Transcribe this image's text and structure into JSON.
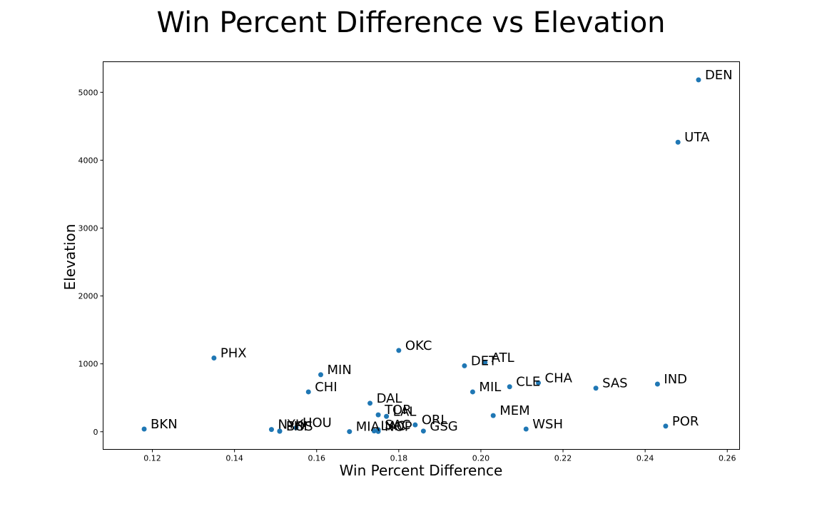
{
  "chart_data": {
    "type": "scatter",
    "title": "Win Percent Difference vs Elevation",
    "xlabel": "Win Percent Difference",
    "ylabel": "Elevation",
    "xlim": [
      0.108,
      0.263
    ],
    "ylim": [
      -260,
      5450
    ],
    "xticks": [
      "0.12",
      "0.14",
      "0.16",
      "0.18",
      "0.20",
      "0.22",
      "0.24",
      "0.26"
    ],
    "yticks": [
      "0",
      "1000",
      "2000",
      "3000",
      "4000",
      "5000"
    ],
    "grid": false,
    "marker_color": "#1f77b4",
    "points": [
      {
        "label": "DEN",
        "x": 0.253,
        "y": 5183
      },
      {
        "label": "UTA",
        "x": 0.248,
        "y": 4265
      },
      {
        "label": "OKC",
        "x": 0.18,
        "y": 1198
      },
      {
        "label": "PHX",
        "x": 0.135,
        "y": 1086
      },
      {
        "label": "ATL",
        "x": 0.201,
        "y": 1020
      },
      {
        "label": "DET",
        "x": 0.196,
        "y": 971
      },
      {
        "label": "MIN",
        "x": 0.161,
        "y": 840
      },
      {
        "label": "CHA",
        "x": 0.214,
        "y": 720
      },
      {
        "label": "IND",
        "x": 0.243,
        "y": 702
      },
      {
        "label": "CLE",
        "x": 0.207,
        "y": 663
      },
      {
        "label": "SAS",
        "x": 0.228,
        "y": 642
      },
      {
        "label": "CHI",
        "x": 0.158,
        "y": 587
      },
      {
        "label": "MIL",
        "x": 0.198,
        "y": 587
      },
      {
        "label": "DAL",
        "x": 0.173,
        "y": 420
      },
      {
        "label": "TOR",
        "x": 0.175,
        "y": 249
      },
      {
        "label": "MEM",
        "x": 0.203,
        "y": 238
      },
      {
        "label": "LAL",
        "x": 0.177,
        "y": 226
      },
      {
        "label": "ORL",
        "x": 0.184,
        "y": 101
      },
      {
        "label": "POR",
        "x": 0.245,
        "y": 83
      },
      {
        "label": "HOU",
        "x": 0.155,
        "y": 59
      },
      {
        "label": "BKN",
        "x": 0.118,
        "y": 40
      },
      {
        "label": "WSH",
        "x": 0.211,
        "y": 40
      },
      {
        "label": "NYK",
        "x": 0.149,
        "y": 33
      },
      {
        "label": "SAC",
        "x": 0.175,
        "y": 30
      },
      {
        "label": "BOS",
        "x": 0.151,
        "y": 10
      },
      {
        "label": "PHI",
        "x": 0.151,
        "y": 7
      },
      {
        "label": "GSG",
        "x": 0.186,
        "y": 10
      },
      {
        "label": "LAC",
        "x": 0.174,
        "y": 12
      },
      {
        "label": "NOP",
        "x": 0.175,
        "y": 4
      },
      {
        "label": "MIA",
        "x": 0.168,
        "y": 2
      }
    ]
  }
}
